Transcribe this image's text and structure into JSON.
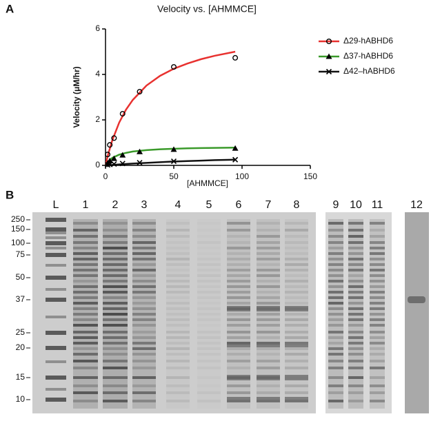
{
  "panel_labels": [
    "A",
    "B"
  ],
  "chart_data": {
    "type": "line",
    "title": "Velocity vs. [AHMMCE]",
    "x_label": "[AHMMCE]",
    "y_label": "Velocity (μM/hr)",
    "xlim": [
      0,
      150
    ],
    "xticks": [
      0,
      50,
      100,
      150
    ],
    "ylim": [
      0,
      6
    ],
    "yticks": [
      0,
      2,
      4,
      6
    ],
    "grid": false,
    "legend": "upper right",
    "series": [
      {
        "name": "Δ29-hABHD6",
        "color": "#e8312f",
        "marker": "circle",
        "x": [
          1.5625,
          3.125,
          6.25,
          12.5,
          25,
          50,
          95
        ],
        "values": [
          0.48,
          0.9,
          1.2,
          2.27,
          3.24,
          4.33,
          4.73
        ],
        "fit": {
          "x": [
            0,
            2,
            5,
            10,
            15,
            20,
            30,
            40,
            50,
            60,
            70,
            80,
            95
          ],
          "values": [
            0,
            0.5,
            1.11,
            1.88,
            2.45,
            2.88,
            3.51,
            3.94,
            4.25,
            4.48,
            4.67,
            4.82,
            5.0
          ]
        }
      },
      {
        "name": "Δ37-hABHD6",
        "color": "#3a9a2a",
        "marker": "triangle",
        "x": [
          1.5625,
          3.125,
          6.25,
          12.5,
          25,
          50,
          95
        ],
        "values": [
          0.1,
          0.2,
          0.3,
          0.45,
          0.6,
          0.7,
          0.75
        ],
        "fit": {
          "x": [
            0,
            2,
            5,
            10,
            15,
            20,
            30,
            40,
            50,
            60,
            70,
            80,
            95
          ],
          "values": [
            0,
            0.17,
            0.33,
            0.47,
            0.55,
            0.61,
            0.67,
            0.71,
            0.73,
            0.75,
            0.76,
            0.77,
            0.78
          ]
        }
      },
      {
        "name": "Δ42–hABHD6",
        "color": "#111111",
        "marker": "x",
        "x": [
          1.5625,
          3.125,
          6.25,
          12.5,
          25,
          50,
          95
        ],
        "values": [
          0.02,
          0.04,
          0.06,
          0.08,
          0.12,
          0.18,
          0.25
        ],
        "fit": {
          "x": [
            0,
            2,
            5,
            10,
            15,
            20,
            30,
            40,
            50,
            60,
            70,
            80,
            95
          ],
          "values": [
            0,
            0.01,
            0.02,
            0.04,
            0.06,
            0.08,
            0.11,
            0.14,
            0.17,
            0.19,
            0.21,
            0.23,
            0.25
          ]
        }
      }
    ]
  },
  "gel": {
    "lanes": [
      "L",
      "1",
      "2",
      "3",
      "4",
      "5",
      "6",
      "7",
      "8",
      "9",
      "10",
      "11",
      "12"
    ],
    "markers": [
      250,
      150,
      100,
      75,
      50,
      37,
      25,
      20,
      15,
      10
    ]
  }
}
